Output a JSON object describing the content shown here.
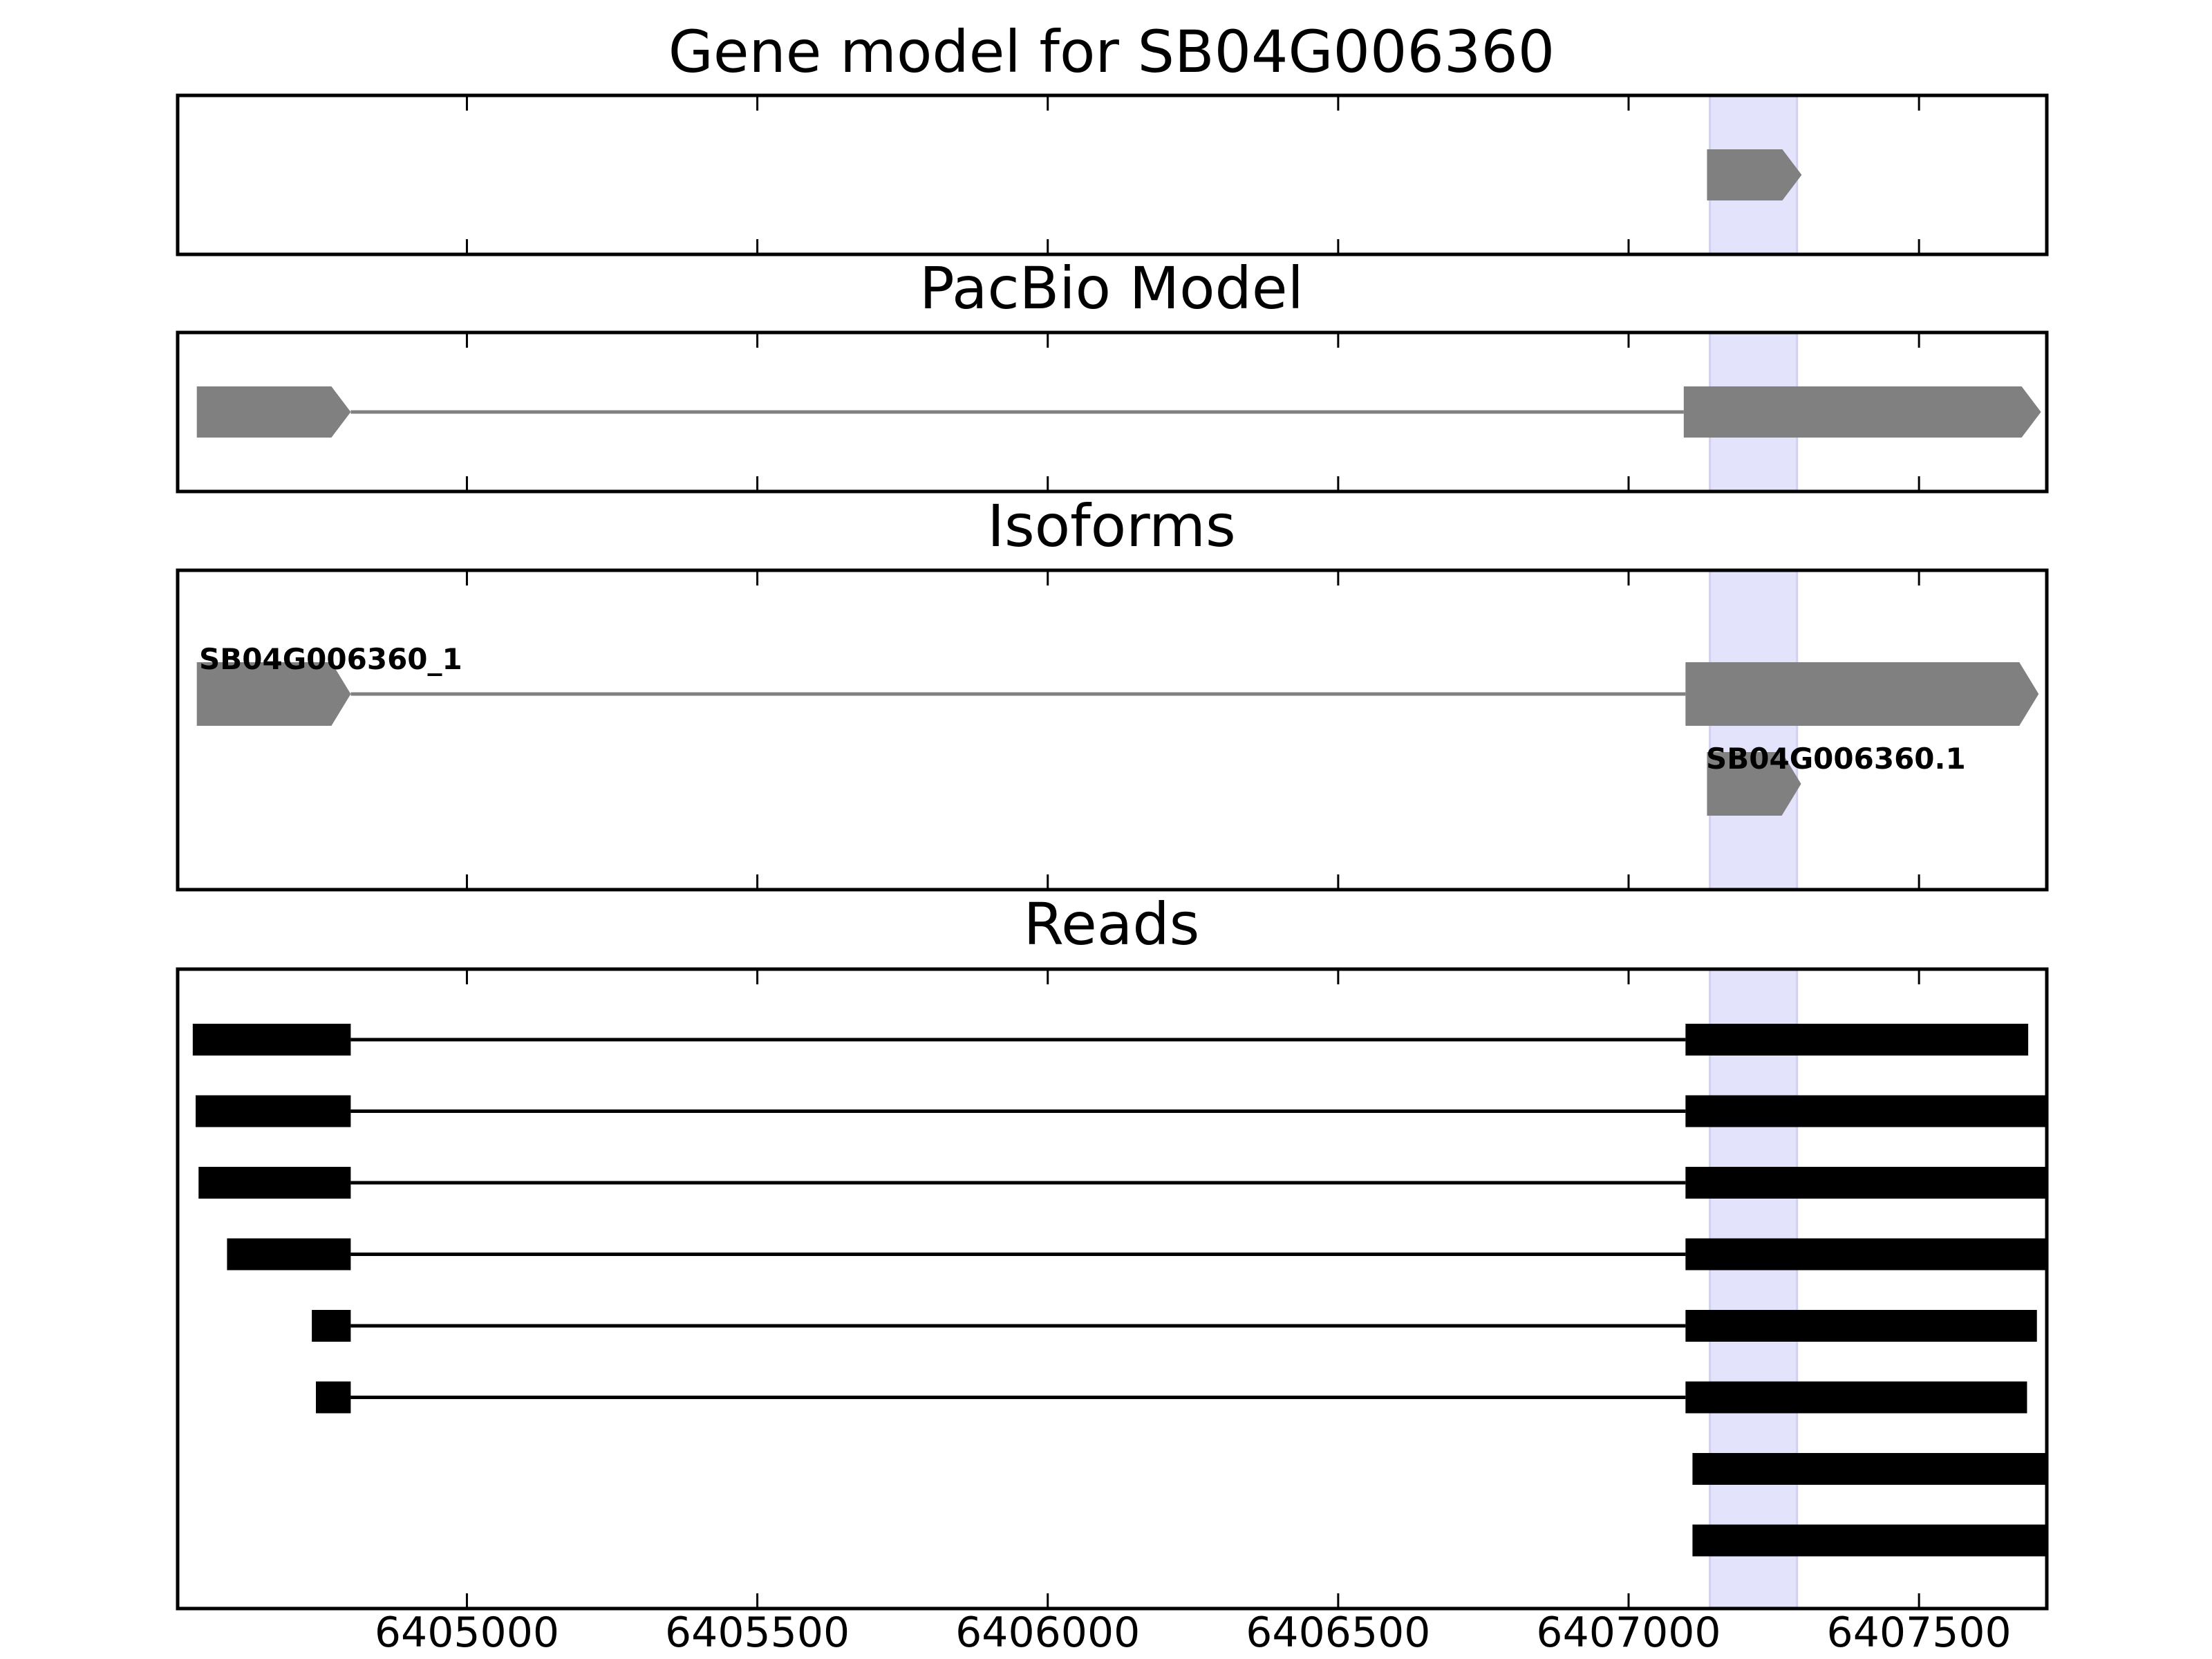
{
  "titles": {
    "gene_model": "Gene model for SB04G006360",
    "pacbio": "PacBio Model",
    "isoforms": "Isoforms",
    "reads": "Reads"
  },
  "x_axis": {
    "min": 6404502,
    "max": 6407720,
    "ticks": [
      6405000,
      6405500,
      6406000,
      6406500,
      6407000,
      6407500
    ],
    "tick_labels": [
      "6405000",
      "6405500",
      "6406000",
      "6406500",
      "6407000",
      "6407500"
    ]
  },
  "highlight": {
    "start": 6407140,
    "end": 6407290,
    "color": "#e3e3fb"
  },
  "colors": {
    "model": "#808080",
    "read": "#000000",
    "frame": "#000000"
  },
  "gene_model": [
    {
      "start": 6407135,
      "end": 6407298,
      "strand": "+"
    }
  ],
  "pacbio_model": {
    "exons": [
      {
        "start": 6404535,
        "end": 6404800
      },
      {
        "start": 6407095,
        "end": 6407710
      }
    ],
    "strand": "+"
  },
  "isoforms": [
    {
      "name": "SB04G006360_1",
      "exons": [
        {
          "start": 6404535,
          "end": 6404800
        },
        {
          "start": 6407098,
          "end": 6407706
        }
      ],
      "strand": "+"
    },
    {
      "name": "SB04G006360.1",
      "exons": [
        {
          "start": 6407135,
          "end": 6407297
        }
      ],
      "strand": "+"
    }
  ],
  "reads": [
    {
      "exons": [
        {
          "start": 6404528,
          "end": 6404800
        },
        {
          "start": 6407098,
          "end": 6407688
        }
      ]
    },
    {
      "exons": [
        {
          "start": 6404533,
          "end": 6404800
        },
        {
          "start": 6407098,
          "end": 6407720
        }
      ]
    },
    {
      "exons": [
        {
          "start": 6404538,
          "end": 6404800
        },
        {
          "start": 6407098,
          "end": 6407720
        }
      ]
    },
    {
      "exons": [
        {
          "start": 6404587,
          "end": 6404800
        },
        {
          "start": 6407098,
          "end": 6407720
        }
      ]
    },
    {
      "exons": [
        {
          "start": 6404733,
          "end": 6404800
        },
        {
          "start": 6407098,
          "end": 6407703
        }
      ]
    },
    {
      "exons": [
        {
          "start": 6404740,
          "end": 6404800
        },
        {
          "start": 6407098,
          "end": 6407686
        }
      ]
    },
    {
      "exons": [
        {
          "start": 6407110,
          "end": 6407720
        }
      ]
    },
    {
      "exons": [
        {
          "start": 6407110,
          "end": 6407720
        }
      ]
    }
  ]
}
